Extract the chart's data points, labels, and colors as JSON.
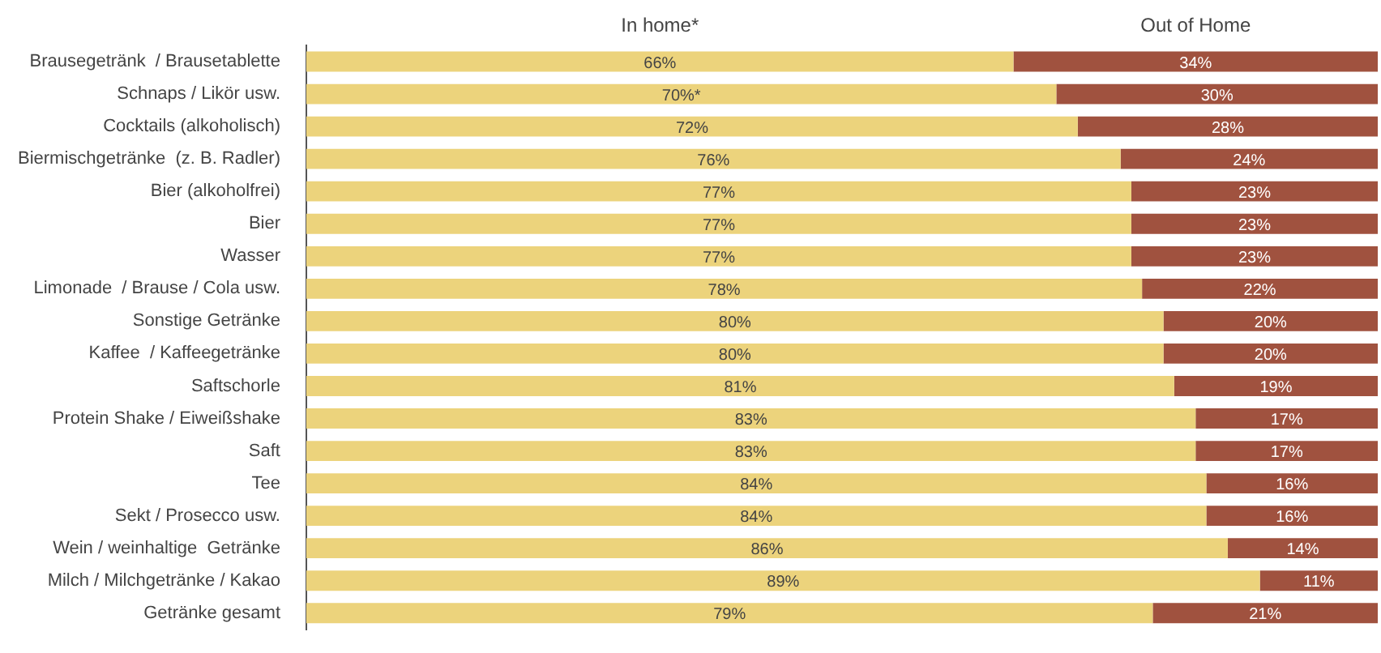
{
  "chart_data": {
    "type": "bar",
    "orientation": "horizontal",
    "stacked": true,
    "legend": "top",
    "tick_labels": "y",
    "xlim": [
      0,
      100
    ],
    "categories": [
      "Brausegetränk  / Brausetablette",
      "Schnaps / Likör usw.",
      "Cocktails (alkoholisch)",
      "Biermischgetränke  (z. B. Radler)",
      "Bier (alkoholfrei)",
      "Bier",
      "Wasser",
      "Limonade  / Brause / Cola usw.",
      "Sonstige Getränke",
      "Kaffee  / Kaffeegetränke",
      "Saftschorle",
      "Protein Shake / Eiweißshake",
      "Saft",
      "Tee",
      "Sekt / Prosecco usw.",
      "Wein / weinhaltige  Getränke",
      "Milch / Milchgetränke / Kakao",
      "Getränke gesamt"
    ],
    "series": [
      {
        "name": "In home*",
        "color": "#ecd37c",
        "values": [
          66,
          70,
          72,
          76,
          77,
          77,
          77,
          78,
          80,
          80,
          81,
          83,
          83,
          84,
          84,
          86,
          89,
          79
        ],
        "value_labels": [
          "66%",
          "70%*",
          "72%",
          "76%",
          "77%",
          "77%",
          "77%",
          "78%",
          "80%",
          "80%",
          "81%",
          "83%",
          "83%",
          "84%",
          "84%",
          "86%",
          "89%",
          "79%"
        ]
      },
      {
        "name": "Out of Home",
        "color": "#a0523f",
        "values": [
          34,
          30,
          28,
          24,
          23,
          23,
          23,
          22,
          20,
          20,
          19,
          17,
          17,
          16,
          16,
          14,
          11,
          21
        ],
        "value_labels": [
          "34%",
          "30%",
          "28%",
          "24%",
          "23%",
          "23%",
          "23%",
          "22%",
          "20%",
          "20%",
          "19%",
          "17%",
          "17%",
          "16%",
          "16%",
          "14%",
          "11%",
          "21%"
        ]
      }
    ]
  }
}
